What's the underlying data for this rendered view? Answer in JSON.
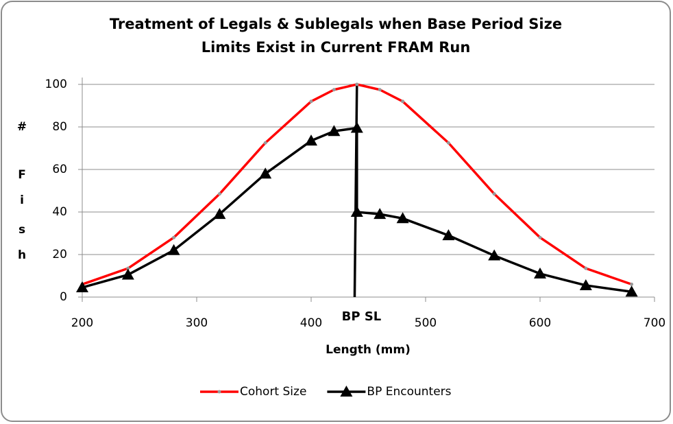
{
  "chart_data": {
    "type": "line",
    "title": [
      "Treatment of Legals & Sublegals when Base Period Size",
      "Limits Exist in Current FRAM Run"
    ],
    "xlabel": "Length (mm)",
    "ylabel": [
      "#",
      "F",
      "i",
      "s",
      "h"
    ],
    "xlim": [
      200,
      700
    ],
    "xticks": [
      200,
      300,
      400,
      500,
      600,
      700
    ],
    "ylim": [
      0,
      100
    ],
    "yticks": [
      0,
      20,
      40,
      60,
      80,
      100
    ],
    "grid": true,
    "legend": "bottom",
    "series": [
      {
        "name": "Cohort Size",
        "color": "#ff0000",
        "marker": "dot",
        "marker_color": "#999999",
        "x": [
          200,
          240,
          280,
          320,
          360,
          400,
          420,
          440,
          460,
          480,
          520,
          560,
          600,
          640,
          680
        ],
        "values": [
          6,
          13.5,
          28,
          48.5,
          72.5,
          92,
          97.5,
          100,
          97.5,
          92,
          72.5,
          48.5,
          28,
          13.5,
          6
        ]
      },
      {
        "name": "BP Encounters",
        "color": "#000000",
        "marker": "triangle",
        "marker_color": "#000000",
        "x": [
          200,
          240,
          280,
          320,
          360,
          400,
          420,
          440,
          440,
          460,
          480,
          520,
          560,
          600,
          640,
          680
        ],
        "values": [
          4.5,
          10.5,
          22,
          39,
          58,
          73.5,
          78,
          79.5,
          40,
          39,
          37,
          29,
          19.5,
          11,
          5.5,
          2.5
        ]
      }
    ],
    "reference_line": {
      "label": "BP SL",
      "x": [
        438,
        440
      ],
      "y": [
        0,
        100
      ],
      "color": "#000000"
    }
  }
}
